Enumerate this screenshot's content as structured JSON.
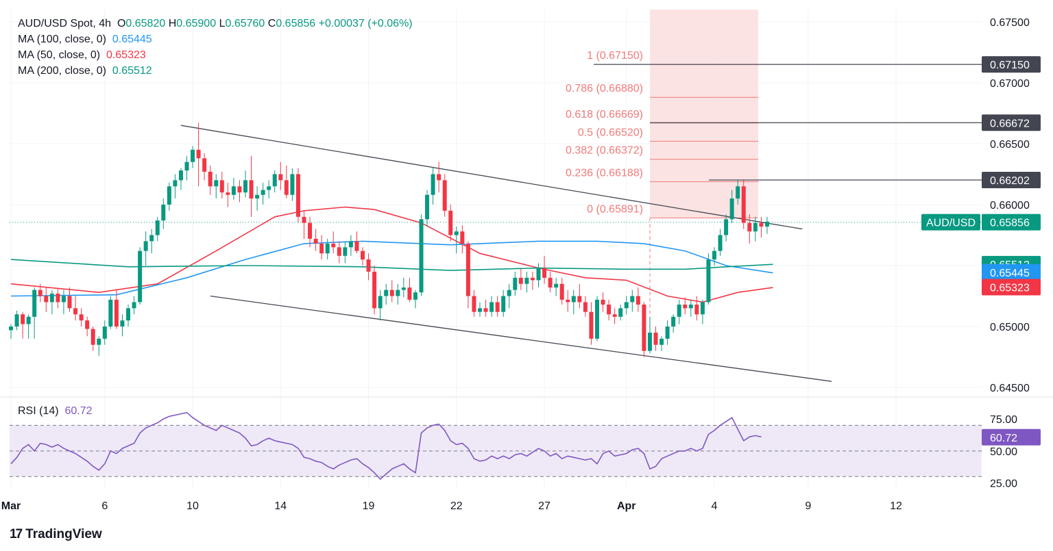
{
  "header": {
    "symbol": "AUD/USD Spot, 4h",
    "open_label": "O",
    "open": "0.65820",
    "high_label": "H",
    "high": "0.65900",
    "low_label": "L",
    "low": "0.65760",
    "close_label": "C",
    "close": "0.65856",
    "change": "+0.00037 (+0.06%)",
    "ma100_label": "MA (100, close, 0)",
    "ma100_value": "0.65445",
    "ma50_label": "MA (50, close, 0)",
    "ma50_value": "0.65323",
    "ma200_label": "MA (200, close, 0)",
    "ma200_value": "0.65512",
    "rsi_label": "RSI (14)",
    "rsi_value": "60.72"
  },
  "branding": {
    "logo_mark": "17",
    "logo_text": "TradingView"
  },
  "colors": {
    "up": "#089981",
    "down": "#f23645",
    "ma100": "#2196f3",
    "ma50": "#f23645",
    "ma200": "#089981",
    "rsi": "#7e57c2",
    "fib": "#f07a7a",
    "tag_dark": "#434651"
  },
  "chart_data": [
    {
      "type": "candlestick",
      "symbol": "AUD/USD",
      "timeframe": "4h",
      "ylim": [
        0.6445,
        0.676
      ],
      "y_ticks": [
        "0.67500",
        "0.67000",
        "0.66500",
        "0.66000",
        "0.65500",
        "0.65000",
        "0.64500"
      ],
      "x_ticks": [
        "Mar",
        "6",
        "10",
        "14",
        "19",
        "22",
        "27",
        "Apr",
        "4",
        "9",
        "12"
      ],
      "last_price": 0.65856,
      "price_tag_label": "AUD/USD",
      "price_tags": [
        {
          "label": "0.67150",
          "value": 0.6715,
          "color": "#434651"
        },
        {
          "label": "0.66672",
          "value": 0.66672,
          "color": "#434651"
        },
        {
          "label": "0.66202",
          "value": 0.66202,
          "color": "#434651"
        },
        {
          "label": "0.65856",
          "value": 0.65856,
          "color": "#089981"
        },
        {
          "label": "0.65512",
          "value": 0.65512,
          "color": "#089981"
        },
        {
          "label": "0.65445",
          "value": 0.65445,
          "color": "#2196f3"
        },
        {
          "label": "0.65323",
          "value": 0.65323,
          "color": "#f23645"
        }
      ],
      "fibonacci": [
        {
          "label": "1 (0.67150)",
          "value": 0.6715
        },
        {
          "label": "0.786 (0.66880)",
          "value": 0.6688
        },
        {
          "label": "0.618 (0.66669)",
          "value": 0.66669
        },
        {
          "label": "0.5 (0.66520)",
          "value": 0.6652
        },
        {
          "label": "0.382 (0.66372)",
          "value": 0.66372
        },
        {
          "label": "0.236 (0.66188)",
          "value": 0.66188
        },
        {
          "label": "0 (0.65891)",
          "value": 0.65891
        }
      ],
      "candles": [
        [
          0.6497,
          0.6502,
          0.649,
          0.65
        ],
        [
          0.65,
          0.6513,
          0.6497,
          0.651
        ],
        [
          0.651,
          0.6512,
          0.649,
          0.6502
        ],
        [
          0.6502,
          0.651,
          0.649,
          0.6508
        ],
        [
          0.6508,
          0.6532,
          0.649,
          0.653
        ],
        [
          0.653,
          0.6535,
          0.652,
          0.6525
        ],
        [
          0.6525,
          0.6532,
          0.6512,
          0.652
        ],
        [
          0.652,
          0.653,
          0.651,
          0.6527
        ],
        [
          0.6527,
          0.6531,
          0.6515,
          0.652
        ],
        [
          0.652,
          0.653,
          0.651,
          0.6525
        ],
        [
          0.6525,
          0.6532,
          0.6512,
          0.6515
        ],
        [
          0.6515,
          0.6525,
          0.6505,
          0.651
        ],
        [
          0.651,
          0.6515,
          0.65,
          0.6505
        ],
        [
          0.6505,
          0.6508,
          0.6492,
          0.6498
        ],
        [
          0.6498,
          0.65,
          0.648,
          0.6485
        ],
        [
          0.6485,
          0.6492,
          0.6476,
          0.649
        ],
        [
          0.649,
          0.6505,
          0.6485,
          0.65
        ],
        [
          0.65,
          0.6525,
          0.6498,
          0.6522
        ],
        [
          0.6522,
          0.653,
          0.6498,
          0.65
        ],
        [
          0.65,
          0.651,
          0.6492,
          0.6505
        ],
        [
          0.6505,
          0.6518,
          0.65,
          0.6515
        ],
        [
          0.6515,
          0.6525,
          0.651,
          0.652
        ],
        [
          0.652,
          0.6565,
          0.6518,
          0.6562
        ],
        [
          0.6562,
          0.6578,
          0.655,
          0.657
        ],
        [
          0.657,
          0.658,
          0.656,
          0.6575
        ],
        [
          0.6575,
          0.659,
          0.657,
          0.6587
        ],
        [
          0.6587,
          0.6605,
          0.658,
          0.66
        ],
        [
          0.66,
          0.6618,
          0.6595,
          0.6615
        ],
        [
          0.6615,
          0.6625,
          0.6605,
          0.662
        ],
        [
          0.662,
          0.663,
          0.6612,
          0.6628
        ],
        [
          0.6628,
          0.664,
          0.662,
          0.6635
        ],
        [
          0.6635,
          0.6648,
          0.663,
          0.6645
        ],
        [
          0.6645,
          0.6667,
          0.6615,
          0.6638
        ],
        [
          0.6638,
          0.6642,
          0.662,
          0.6627
        ],
        [
          0.6627,
          0.6632,
          0.6608,
          0.6615
        ],
        [
          0.6615,
          0.6625,
          0.6605,
          0.662
        ],
        [
          0.662,
          0.6627,
          0.6605,
          0.661
        ],
        [
          0.661,
          0.6618,
          0.6598,
          0.6608
        ],
        [
          0.6608,
          0.6622,
          0.6604,
          0.6615
        ],
        [
          0.6615,
          0.662,
          0.6602,
          0.661
        ],
        [
          0.661,
          0.6628,
          0.6606,
          0.662
        ],
        [
          0.662,
          0.664,
          0.659,
          0.6605
        ],
        [
          0.6605,
          0.6615,
          0.6595,
          0.6608
        ],
        [
          0.6608,
          0.6618,
          0.66,
          0.6612
        ],
        [
          0.6612,
          0.662,
          0.6605,
          0.6615
        ],
        [
          0.6615,
          0.6628,
          0.661,
          0.6625
        ],
        [
          0.6625,
          0.6635,
          0.6612,
          0.662
        ],
        [
          0.662,
          0.6632,
          0.6605,
          0.6608
        ],
        [
          0.6608,
          0.663,
          0.6603,
          0.6625
        ],
        [
          0.6625,
          0.663,
          0.6585,
          0.659
        ],
        [
          0.659,
          0.6595,
          0.6572,
          0.6585
        ],
        [
          0.6585,
          0.659,
          0.6565,
          0.6572
        ],
        [
          0.6572,
          0.658,
          0.6562,
          0.6568
        ],
        [
          0.6568,
          0.6575,
          0.6555,
          0.656
        ],
        [
          0.656,
          0.6572,
          0.6555,
          0.6568
        ],
        [
          0.6568,
          0.6578,
          0.656,
          0.6565
        ],
        [
          0.6565,
          0.657,
          0.6552,
          0.6558
        ],
        [
          0.6558,
          0.657,
          0.6552,
          0.6565
        ],
        [
          0.6565,
          0.6575,
          0.6558,
          0.657
        ],
        [
          0.657,
          0.6578,
          0.656,
          0.6562
        ],
        [
          0.6562,
          0.6565,
          0.655,
          0.6555
        ],
        [
          0.6555,
          0.656,
          0.6538,
          0.6545
        ],
        [
          0.6545,
          0.655,
          0.651,
          0.6515
        ],
        [
          0.6515,
          0.653,
          0.6505,
          0.6525
        ],
        [
          0.6525,
          0.6535,
          0.6518,
          0.653
        ],
        [
          0.653,
          0.6538,
          0.652,
          0.6525
        ],
        [
          0.6525,
          0.6535,
          0.6518,
          0.653
        ],
        [
          0.653,
          0.654,
          0.6524,
          0.6532
        ],
        [
          0.6532,
          0.654,
          0.652,
          0.6522
        ],
        [
          0.6522,
          0.653,
          0.6515,
          0.6528
        ],
        [
          0.6528,
          0.6592,
          0.6525,
          0.6588
        ],
        [
          0.6588,
          0.6612,
          0.6582,
          0.6608
        ],
        [
          0.6608,
          0.663,
          0.66,
          0.6625
        ],
        [
          0.6625,
          0.6635,
          0.661,
          0.662
        ],
        [
          0.662,
          0.6625,
          0.659,
          0.6595
        ],
        [
          0.6595,
          0.66,
          0.657,
          0.6575
        ],
        [
          0.6575,
          0.6582,
          0.656,
          0.6578
        ],
        [
          0.6578,
          0.6583,
          0.656,
          0.6568
        ],
        [
          0.6568,
          0.657,
          0.6515,
          0.6525
        ],
        [
          0.6525,
          0.653,
          0.6508,
          0.6512
        ],
        [
          0.6512,
          0.652,
          0.6508,
          0.6515
        ],
        [
          0.6515,
          0.6522,
          0.6508,
          0.6512
        ],
        [
          0.6512,
          0.6525,
          0.6508,
          0.652
        ],
        [
          0.652,
          0.6525,
          0.6508,
          0.6512
        ],
        [
          0.6512,
          0.653,
          0.6508,
          0.6525
        ],
        [
          0.6525,
          0.6535,
          0.6515,
          0.653
        ],
        [
          0.653,
          0.6545,
          0.6525,
          0.654
        ],
        [
          0.654,
          0.6548,
          0.653,
          0.6535
        ],
        [
          0.6535,
          0.6545,
          0.6528,
          0.654
        ],
        [
          0.654,
          0.6545,
          0.653,
          0.6538
        ],
        [
          0.6538,
          0.6552,
          0.6532,
          0.6548
        ],
        [
          0.6548,
          0.6558,
          0.6535,
          0.654
        ],
        [
          0.654,
          0.6545,
          0.6528,
          0.6532
        ],
        [
          0.6532,
          0.654,
          0.6525,
          0.6535
        ],
        [
          0.6535,
          0.654,
          0.6518,
          0.6522
        ],
        [
          0.6522,
          0.653,
          0.6512,
          0.652
        ],
        [
          0.652,
          0.653,
          0.651,
          0.6525
        ],
        [
          0.6525,
          0.6535,
          0.6515,
          0.652
        ],
        [
          0.652,
          0.6525,
          0.6508,
          0.6512
        ],
        [
          0.6512,
          0.652,
          0.6485,
          0.649
        ],
        [
          0.649,
          0.6525,
          0.6488,
          0.6522
        ],
        [
          0.6522,
          0.6528,
          0.6512,
          0.6518
        ],
        [
          0.6518,
          0.6522,
          0.6505,
          0.651
        ],
        [
          0.651,
          0.6515,
          0.6502,
          0.6508
        ],
        [
          0.6508,
          0.6518,
          0.6505,
          0.6515
        ],
        [
          0.6515,
          0.6525,
          0.651,
          0.652
        ],
        [
          0.652,
          0.653,
          0.6512,
          0.6525
        ],
        [
          0.6525,
          0.6532,
          0.6512,
          0.6518
        ],
        [
          0.6518,
          0.652,
          0.6475,
          0.648
        ],
        [
          0.648,
          0.6508,
          0.6478,
          0.6495
        ],
        [
          0.6495,
          0.65,
          0.648,
          0.6485
        ],
        [
          0.6485,
          0.6492,
          0.648,
          0.649
        ],
        [
          0.649,
          0.6505,
          0.6485,
          0.65
        ],
        [
          0.65,
          0.651,
          0.6495,
          0.6508
        ],
        [
          0.6508,
          0.6522,
          0.6502,
          0.6518
        ],
        [
          0.6518,
          0.6524,
          0.651,
          0.6515
        ],
        [
          0.6515,
          0.6522,
          0.6508,
          0.6518
        ],
        [
          0.6518,
          0.6525,
          0.6505,
          0.651
        ],
        [
          0.651,
          0.6522,
          0.6502,
          0.652
        ],
        [
          0.652,
          0.656,
          0.6518,
          0.6555
        ],
        [
          0.6555,
          0.6565,
          0.655,
          0.6562
        ],
        [
          0.6562,
          0.658,
          0.6558,
          0.6575
        ],
        [
          0.6575,
          0.6592,
          0.657,
          0.6588
        ],
        [
          0.6588,
          0.6612,
          0.6585,
          0.6605
        ],
        [
          0.6605,
          0.662,
          0.66,
          0.6615
        ],
        [
          0.6615,
          0.662,
          0.658,
          0.6585
        ],
        [
          0.6585,
          0.6592,
          0.6568,
          0.6578
        ],
        [
          0.6578,
          0.659,
          0.657,
          0.6585
        ],
        [
          0.6585,
          0.659,
          0.6573,
          0.6582
        ],
        [
          0.6582,
          0.659,
          0.6576,
          0.6586
        ]
      ],
      "moving_averages": [
        {
          "name": "MA (50, close, 0)",
          "color": "#f23645",
          "points": [
            [
              0,
              0.6535
            ],
            [
              15,
              0.6528
            ],
            [
              25,
              0.6535
            ],
            [
              35,
              0.6562
            ],
            [
              45,
              0.659
            ],
            [
              50,
              0.6595
            ],
            [
              57,
              0.6598
            ],
            [
              62,
              0.6596
            ],
            [
              70,
              0.6585
            ],
            [
              80,
              0.656
            ],
            [
              90,
              0.6548
            ],
            [
              98,
              0.654
            ],
            [
              105,
              0.6538
            ],
            [
              112,
              0.6525
            ],
            [
              118,
              0.652
            ],
            [
              124,
              0.6528
            ],
            [
              130,
              0.6532
            ]
          ]
        },
        {
          "name": "MA (100, close, 0)",
          "color": "#2196f3",
          "points": [
            [
              0,
              0.6525
            ],
            [
              18,
              0.6526
            ],
            [
              30,
              0.654
            ],
            [
              40,
              0.6555
            ],
            [
              50,
              0.6568
            ],
            [
              60,
              0.657
            ],
            [
              75,
              0.6567
            ],
            [
              90,
              0.657
            ],
            [
              100,
              0.657
            ],
            [
              108,
              0.6568
            ],
            [
              115,
              0.6562
            ],
            [
              122,
              0.655
            ],
            [
              130,
              0.6544
            ]
          ]
        },
        {
          "name": "MA (200, close, 0)",
          "color": "#089981",
          "points": [
            [
              0,
              0.6555
            ],
            [
              20,
              0.6549
            ],
            [
              40,
              0.655
            ],
            [
              60,
              0.6549
            ],
            [
              75,
              0.6546
            ],
            [
              90,
              0.6548
            ],
            [
              105,
              0.6547
            ],
            [
              115,
              0.6547
            ],
            [
              122,
              0.6549
            ],
            [
              130,
              0.6551
            ]
          ]
        }
      ],
      "trend_channel": {
        "upper": [
          [
            29,
            0.6665
          ],
          [
            135,
            0.658
          ]
        ],
        "lower": [
          [
            34,
            0.6525
          ],
          [
            140,
            0.6455
          ]
        ]
      }
    },
    {
      "type": "line",
      "name": "RSI (14)",
      "last_value": 60.72,
      "ylim": [
        20,
        90
      ],
      "y_ticks": [
        "75.00",
        "50.00",
        "25.00"
      ],
      "band": [
        30,
        70
      ],
      "mid": 50,
      "values": [
        40,
        45,
        52,
        55,
        50,
        56,
        55,
        53,
        55,
        52,
        50,
        48,
        45,
        42,
        38,
        35,
        40,
        50,
        48,
        52,
        54,
        56,
        64,
        68,
        70,
        72,
        75,
        77,
        78,
        79,
        80,
        76,
        73,
        70,
        68,
        66,
        70,
        68,
        66,
        64,
        60,
        54,
        55,
        58,
        60,
        58,
        57,
        56,
        55,
        52,
        45,
        44,
        42,
        41,
        38,
        36,
        39,
        41,
        43,
        44,
        40,
        37,
        33,
        28,
        32,
        36,
        38,
        40,
        36,
        33,
        64,
        68,
        70,
        71,
        66,
        58,
        55,
        56,
        52,
        44,
        42,
        43,
        46,
        44,
        46,
        44,
        47,
        48,
        46,
        49,
        52,
        50,
        46,
        48,
        44,
        46,
        45,
        44,
        43,
        44,
        40,
        48,
        50,
        46,
        47,
        48,
        51,
        52,
        48,
        36,
        38,
        44,
        46,
        48,
        50,
        50,
        52,
        50,
        52,
        63,
        66,
        70,
        73,
        76,
        67,
        58,
        61,
        62,
        61
      ]
    }
  ]
}
